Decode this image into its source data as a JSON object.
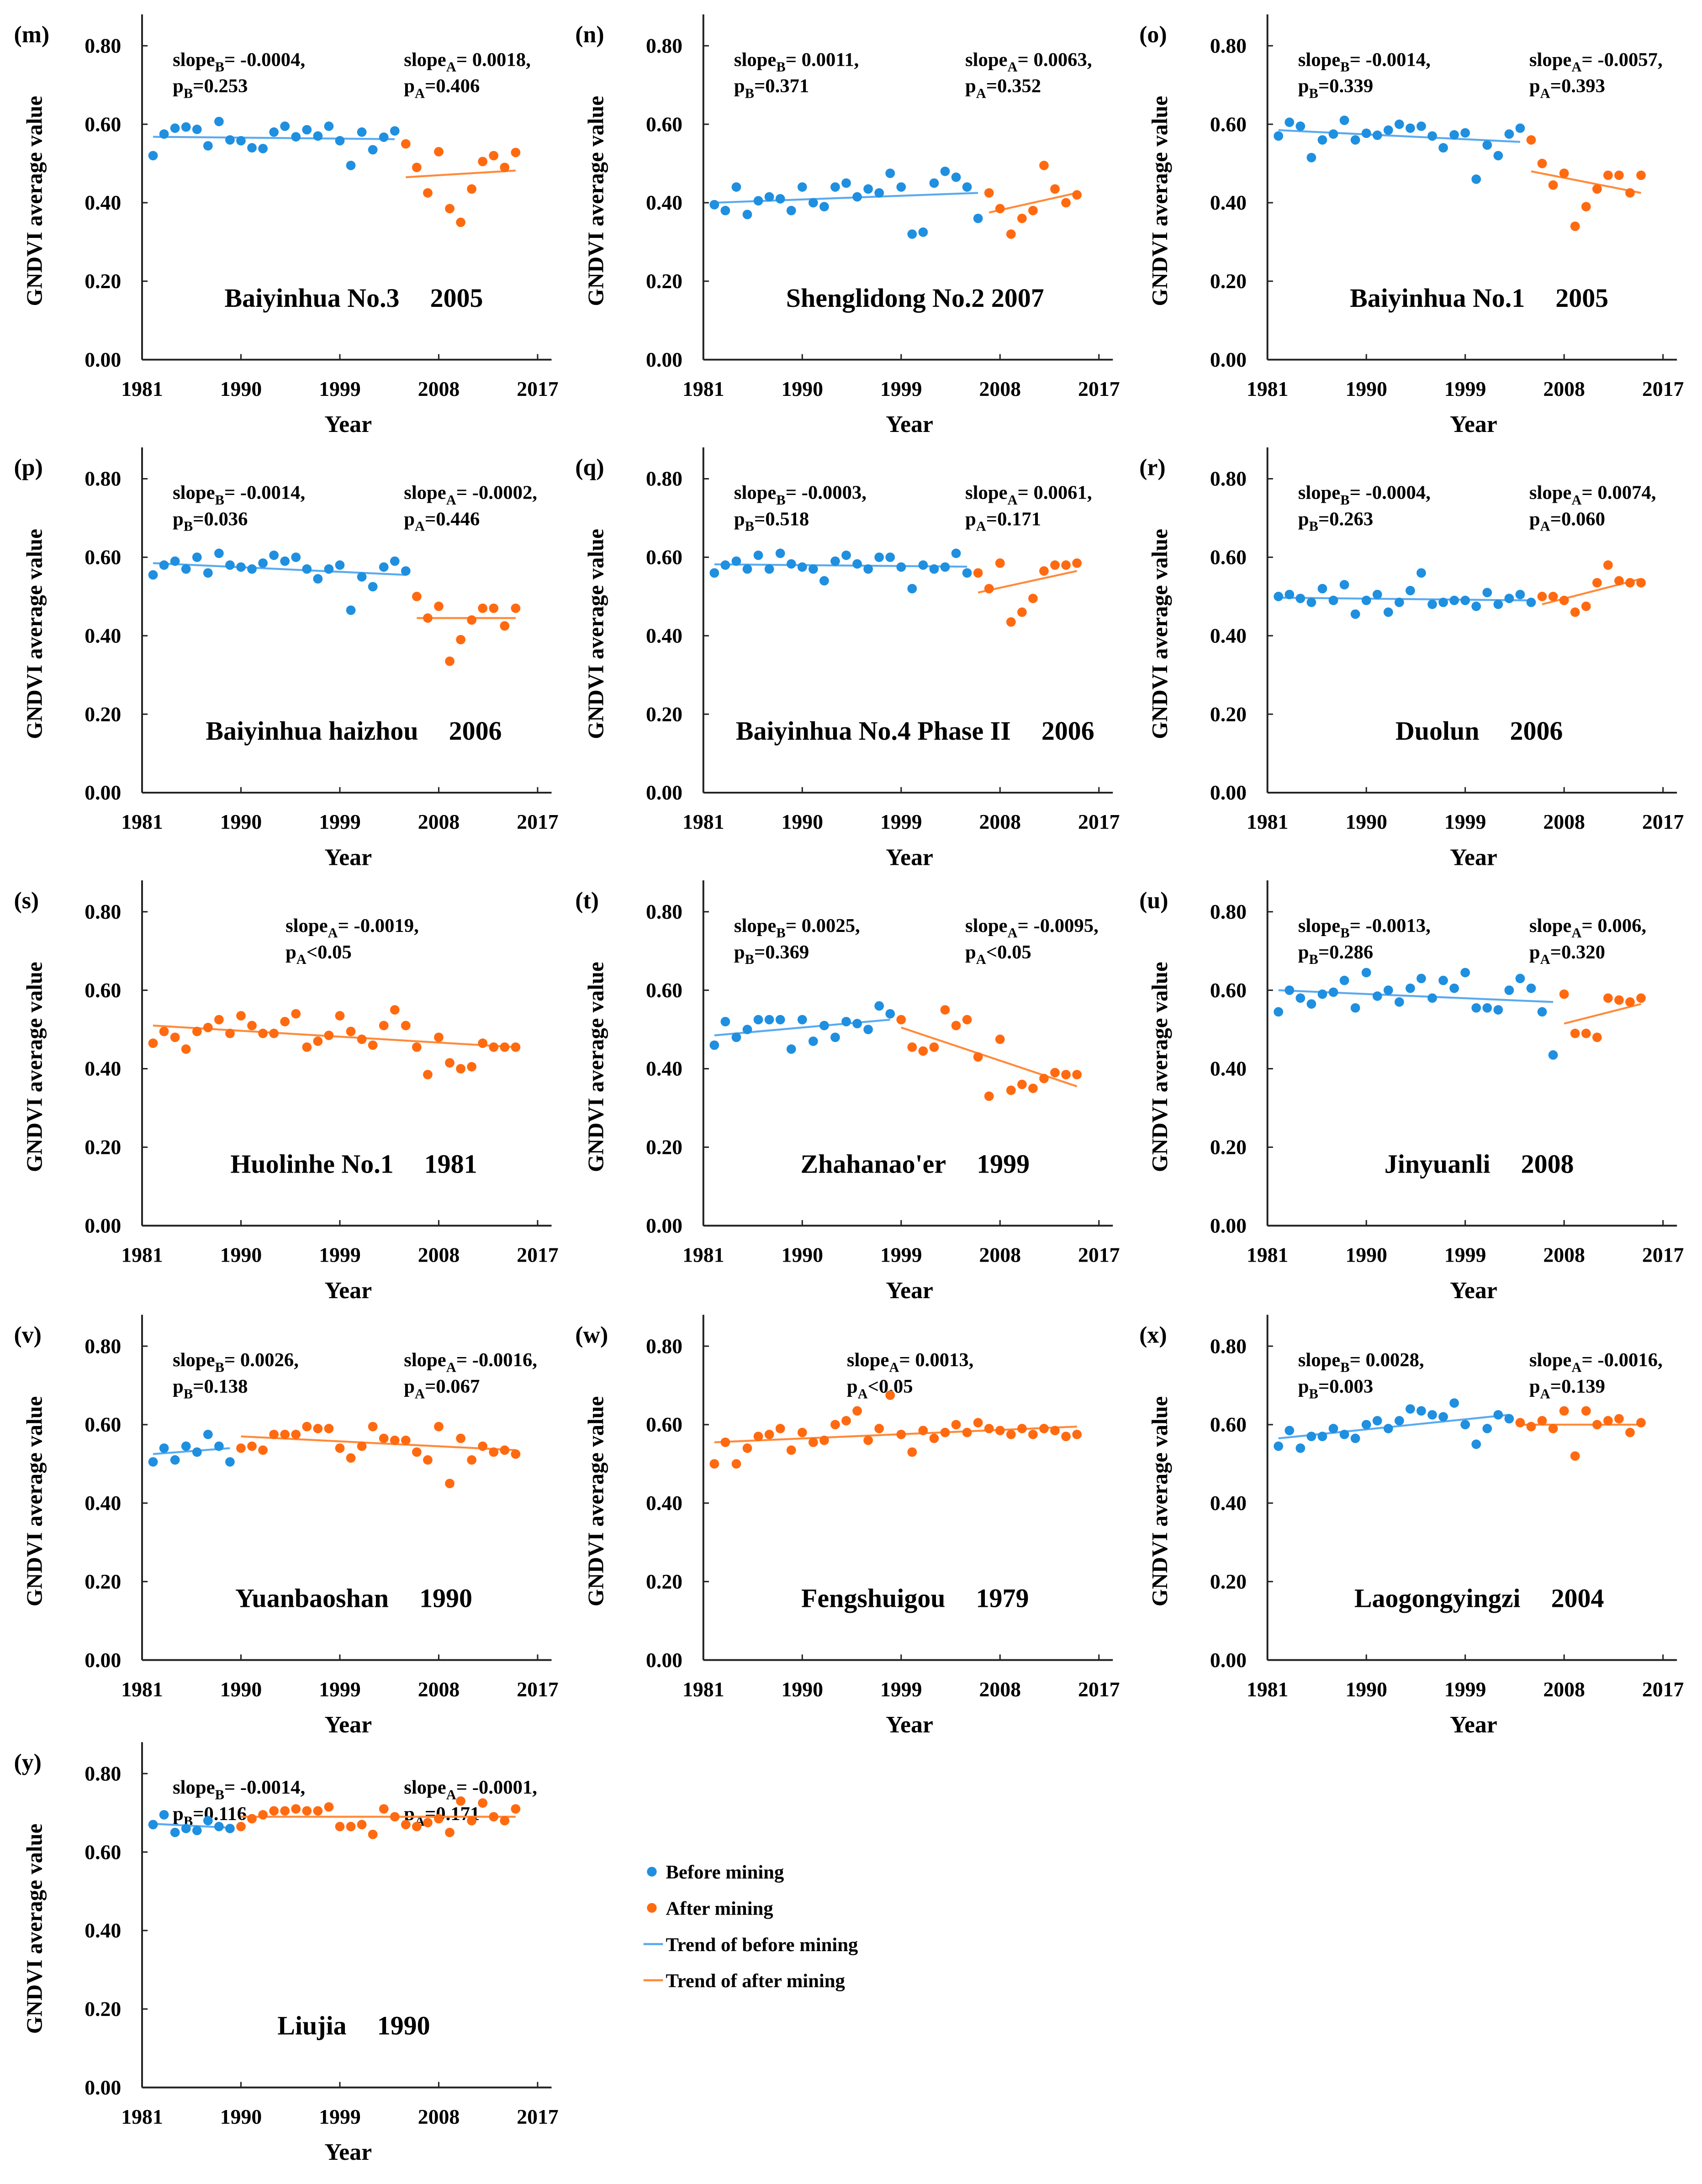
{
  "colors": {
    "before": "#1f8fe0",
    "after": "#ff6a10",
    "trend_before": "#5aaaf0",
    "trend_after": "#ff8a3a",
    "axis": "#222222"
  },
  "legend": {
    "before_points": "Before mining",
    "after_points": "After mining",
    "trend_before": "Trend of before mining",
    "trend_after": "Trend of after mining"
  },
  "chart_data": [
    {
      "type": "scatter",
      "panel": "(m)",
      "site": "Baiyinhua No.3",
      "year": "2005",
      "xlabel": "Year",
      "ylabel": "GNDVI average value",
      "xticks": [
        "1981",
        "1990",
        "1999",
        "2008",
        "2017"
      ],
      "yticks": [
        "0.00",
        "0.20",
        "0.40",
        "0.60",
        "0.80"
      ],
      "xlim": [
        1981,
        2017
      ],
      "ylim": [
        0,
        0.88
      ],
      "annot_b": {
        "slope": "= -0.0004,",
        "p": "=0.253"
      },
      "annot_a": {
        "slope": "= 0.0018,",
        "p": "=0.406"
      },
      "before": {
        "start": 1982,
        "values": [
          0.52,
          0.575,
          0.59,
          0.593,
          0.587,
          0.545,
          0.607,
          0.56,
          0.558,
          0.54,
          0.538,
          0.58,
          0.595,
          0.568,
          0.586,
          0.57,
          0.595,
          0.558,
          0.495,
          0.58,
          0.535,
          0.567,
          0.583
        ]
      },
      "after": {
        "start": 2005,
        "values": [
          0.55,
          0.49,
          0.425,
          0.53,
          0.385,
          0.35,
          0.435,
          0.505,
          0.52,
          0.49,
          0.528
        ]
      },
      "trend_before": [
        0.568,
        0.562
      ],
      "trend_after": [
        0.465,
        0.482
      ]
    },
    {
      "type": "scatter",
      "panel": "(n)",
      "site": "Shenglidong No.2  2007",
      "year": "",
      "xlabel": "Year",
      "ylabel": "GNDVI average value",
      "xticks": [
        "1981",
        "1990",
        "1999",
        "2008",
        "2017"
      ],
      "yticks": [
        "0.00",
        "0.20",
        "0.40",
        "0.60",
        "0.80"
      ],
      "xlim": [
        1981,
        2017
      ],
      "ylim": [
        0,
        0.88
      ],
      "annot_b": {
        "slope": "= 0.0011,",
        "p": "=0.371"
      },
      "annot_a": {
        "slope": "= 0.0063,",
        "p": "=0.352"
      },
      "before": {
        "start": 1982,
        "values": [
          0.395,
          0.38,
          0.44,
          0.37,
          0.405,
          0.415,
          0.41,
          0.38,
          0.44,
          0.4,
          0.39,
          0.44,
          0.45,
          0.415,
          0.435,
          0.425,
          0.475,
          0.44,
          0.32,
          0.325,
          0.45,
          0.48,
          0.465,
          0.44,
          0.36
        ]
      },
      "after": {
        "start": 2007,
        "values": [
          0.425,
          0.385,
          0.32,
          0.36,
          0.38,
          0.495,
          0.435,
          0.4,
          0.42
        ]
      },
      "trend_before": [
        0.4,
        0.425
      ],
      "trend_after": [
        0.375,
        0.425
      ]
    },
    {
      "type": "scatter",
      "panel": "(o)",
      "site": "Baiyinhua No.1",
      "year": "2005",
      "xlabel": "Year",
      "ylabel": "GNDVI average value",
      "xticks": [
        "1981",
        "1990",
        "1999",
        "2008",
        "2017"
      ],
      "yticks": [
        "0.00",
        "0.20",
        "0.40",
        "0.60",
        "0.80"
      ],
      "xlim": [
        1981,
        2017
      ],
      "ylim": [
        0,
        0.88
      ],
      "annot_b": {
        "slope": "= -0.0014,",
        "p": "=0.339"
      },
      "annot_a": {
        "slope": "= -0.0057,",
        "p": "=0.393"
      },
      "before": {
        "start": 1982,
        "values": [
          0.57,
          0.605,
          0.595,
          0.515,
          0.56,
          0.575,
          0.61,
          0.56,
          0.577,
          0.572,
          0.585,
          0.6,
          0.59,
          0.595,
          0.57,
          0.54,
          0.573,
          0.578,
          0.46,
          0.547,
          0.52,
          0.575,
          0.59
        ]
      },
      "after": {
        "start": 2005,
        "values": [
          0.56,
          0.5,
          0.445,
          0.475,
          0.34,
          0.39,
          0.435,
          0.47,
          0.47,
          0.425,
          0.47
        ]
      },
      "trend_before": [
        0.585,
        0.555
      ],
      "trend_after": [
        0.48,
        0.425
      ]
    },
    {
      "type": "scatter",
      "panel": "(p)",
      "site": "Baiyinhua  haizhou",
      "year": "2006",
      "xlabel": "Year",
      "ylabel": "GNDVI average value",
      "xticks": [
        "1981",
        "1990",
        "1999",
        "2008",
        "2017"
      ],
      "yticks": [
        "0.00",
        "0.20",
        "0.40",
        "0.60",
        "0.80"
      ],
      "xlim": [
        1981,
        2017
      ],
      "ylim": [
        0,
        0.88
      ],
      "annot_b": {
        "slope": "= -0.0014,",
        "p": "=0.036"
      },
      "annot_a": {
        "slope": "= -0.0002,",
        "p": "=0.446"
      },
      "before": {
        "start": 1982,
        "values": [
          0.555,
          0.58,
          0.59,
          0.57,
          0.6,
          0.56,
          0.61,
          0.58,
          0.575,
          0.57,
          0.585,
          0.605,
          0.59,
          0.6,
          0.57,
          0.545,
          0.57,
          0.58,
          0.465,
          0.55,
          0.525,
          0.575,
          0.59,
          0.565
        ]
      },
      "after": {
        "start": 2006,
        "values": [
          0.5,
          0.445,
          0.475,
          0.335,
          0.39,
          0.44,
          0.47,
          0.47,
          0.425,
          0.47
        ]
      },
      "trend_before": [
        0.585,
        0.555
      ],
      "trend_after": [
        0.445,
        0.445
      ]
    },
    {
      "type": "scatter",
      "panel": "(q)",
      "site": "Baiyinhua  No.4 Phase II",
      "year": "2006",
      "xlabel": "Year",
      "ylabel": "GNDVI average value",
      "xticks": [
        "1981",
        "1990",
        "1999",
        "2008",
        "2017"
      ],
      "yticks": [
        "0.00",
        "0.20",
        "0.40",
        "0.60",
        "0.80"
      ],
      "xlim": [
        1981,
        2017
      ],
      "ylim": [
        0,
        0.88
      ],
      "annot_b": {
        "slope": "= -0.0003,",
        "p": "=0.518"
      },
      "annot_a": {
        "slope": "= 0.0061,",
        "p": "=0.171"
      },
      "before": {
        "start": 1982,
        "values": [
          0.56,
          0.58,
          0.59,
          0.57,
          0.605,
          0.57,
          0.61,
          0.583,
          0.575,
          0.57,
          0.54,
          0.59,
          0.605,
          0.583,
          0.57,
          0.6,
          0.6,
          0.575,
          0.52,
          0.58,
          0.57,
          0.575,
          0.61,
          0.56
        ]
      },
      "after": {
        "start": 2006,
        "values": [
          0.56,
          0.52,
          0.585,
          0.435,
          0.46,
          0.495,
          0.565,
          0.58,
          0.58,
          0.585
        ]
      },
      "trend_before": [
        0.582,
        0.576
      ],
      "trend_after": [
        0.51,
        0.565
      ]
    },
    {
      "type": "scatter",
      "panel": "(r)",
      "site": "Duolun",
      "year": "2006",
      "xlabel": "Year",
      "ylabel": "GNDVI average value",
      "xticks": [
        "1981",
        "1990",
        "1999",
        "2008",
        "2017"
      ],
      "yticks": [
        "0.00",
        "0.20",
        "0.40",
        "0.60",
        "0.80"
      ],
      "xlim": [
        1981,
        2017
      ],
      "ylim": [
        0,
        0.88
      ],
      "annot_b": {
        "slope": "= -0.0004,",
        "p": "=0.263"
      },
      "annot_a": {
        "slope": "= 0.0074,",
        "p": "=0.060"
      },
      "before": {
        "start": 1982,
        "values": [
          0.5,
          0.505,
          0.495,
          0.485,
          0.52,
          0.49,
          0.53,
          0.455,
          0.49,
          0.505,
          0.46,
          0.485,
          0.515,
          0.56,
          0.48,
          0.485,
          0.49,
          0.49,
          0.475,
          0.51,
          0.48,
          0.495,
          0.505,
          0.485
        ]
      },
      "after": {
        "start": 2006,
        "values": [
          0.5,
          0.5,
          0.49,
          0.46,
          0.475,
          0.535,
          0.58,
          0.54,
          0.535,
          0.535
        ]
      },
      "trend_before": [
        0.497,
        0.49
      ],
      "trend_after": [
        0.48,
        0.545
      ]
    },
    {
      "type": "scatter",
      "panel": "(s)",
      "site": "Huolinhe No.1",
      "year": "1981",
      "xlabel": "Year",
      "ylabel": "GNDVI average value",
      "xticks": [
        "1981",
        "1990",
        "1999",
        "2008",
        "2017"
      ],
      "yticks": [
        "0.00",
        "0.20",
        "0.40",
        "0.60",
        "0.80"
      ],
      "xlim": [
        1981,
        2017
      ],
      "ylim": [
        0,
        0.88
      ],
      "annot_a": {
        "slope": "= -0.0019,",
        "p": "<0.05"
      },
      "after": {
        "start": 1982,
        "values": [
          0.465,
          0.495,
          0.48,
          0.45,
          0.495,
          0.505,
          0.525,
          0.49,
          0.535,
          0.51,
          0.49,
          0.49,
          0.52,
          0.54,
          0.455,
          0.47,
          0.485,
          0.535,
          0.495,
          0.475,
          0.46,
          0.51,
          0.55,
          0.51,
          0.455,
          0.385,
          0.48,
          0.415,
          0.4,
          0.405,
          0.465,
          0.455,
          0.455,
          0.455
        ]
      },
      "trend_after": [
        0.51,
        0.455
      ]
    },
    {
      "type": "scatter",
      "panel": "(t)",
      "site": "Zhahanao'er",
      "year": "1999",
      "xlabel": "Year",
      "ylabel": "GNDVI average value",
      "xticks": [
        "1981",
        "1990",
        "1999",
        "2008",
        "2017"
      ],
      "yticks": [
        "0.00",
        "0.20",
        "0.40",
        "0.60",
        "0.80"
      ],
      "xlim": [
        1981,
        2017
      ],
      "ylim": [
        0,
        0.88
      ],
      "annot_b": {
        "slope": "= 0.0025,",
        "p": "=0.369"
      },
      "annot_a": {
        "slope": "= -0.0095,",
        "p": "<0.05"
      },
      "before": {
        "start": 1982,
        "values": [
          0.46,
          0.52,
          0.48,
          0.5,
          0.525,
          0.525,
          0.525,
          0.45,
          0.525,
          0.47,
          0.51,
          0.48,
          0.52,
          0.515,
          0.5,
          0.56,
          0.54
        ]
      },
      "after": {
        "start": 1999,
        "values": [
          0.525,
          0.455,
          0.445,
          0.455,
          0.55,
          0.51,
          0.525,
          0.43,
          0.33,
          0.475,
          0.345,
          0.36,
          0.35,
          0.375,
          0.39,
          0.385,
          0.385
        ]
      },
      "trend_before": [
        0.485,
        0.525
      ],
      "trend_after": [
        0.505,
        0.355
      ]
    },
    {
      "type": "scatter",
      "panel": "(u)",
      "site": "Jinyuanli",
      "year": "2008",
      "xlabel": "Year",
      "ylabel": "GNDVI average value",
      "xticks": [
        "1981",
        "1990",
        "1999",
        "2008",
        "2017"
      ],
      "yticks": [
        "0.00",
        "0.20",
        "0.40",
        "0.60",
        "0.80"
      ],
      "xlim": [
        1981,
        2017
      ],
      "ylim": [
        0,
        0.88
      ],
      "annot_b": {
        "slope": "= -0.0013,",
        "p": "=0.286"
      },
      "annot_a": {
        "slope": "= 0.006,",
        "p": "=0.320"
      },
      "before": {
        "start": 1982,
        "values": [
          0.545,
          0.6,
          0.58,
          0.565,
          0.59,
          0.595,
          0.625,
          0.555,
          0.645,
          0.585,
          0.6,
          0.57,
          0.605,
          0.63,
          0.58,
          0.625,
          0.605,
          0.645,
          0.555,
          0.555,
          0.55,
          0.6,
          0.63,
          0.605,
          0.545,
          0.435
        ]
      },
      "after": {
        "start": 2008,
        "values": [
          0.59,
          0.49,
          0.49,
          0.48,
          0.58,
          0.575,
          0.57,
          0.58
        ]
      },
      "trend_before": [
        0.6,
        0.57
      ],
      "trend_after": [
        0.515,
        0.565
      ]
    },
    {
      "type": "scatter",
      "panel": "(v)",
      "site": "Yuanbaoshan",
      "year": "1990",
      "xlabel": "Year",
      "ylabel": "GNDVI average value",
      "xticks": [
        "1981",
        "1990",
        "1999",
        "2008",
        "2017"
      ],
      "yticks": [
        "0.00",
        "0.20",
        "0.40",
        "0.60",
        "0.80"
      ],
      "xlim": [
        1981,
        2017
      ],
      "ylim": [
        0,
        0.88
      ],
      "annot_b": {
        "slope": "= 0.0026,",
        "p": "=0.138"
      },
      "annot_a": {
        "slope": "= -0.0016,",
        "p": "=0.067"
      },
      "before": {
        "start": 1982,
        "values": [
          0.505,
          0.54,
          0.51,
          0.545,
          0.53,
          0.575,
          0.545,
          0.505
        ]
      },
      "after": {
        "start": 1990,
        "values": [
          0.54,
          0.545,
          0.535,
          0.575,
          0.575,
          0.575,
          0.595,
          0.59,
          0.59,
          0.54,
          0.515,
          0.545,
          0.595,
          0.565,
          0.56,
          0.56,
          0.53,
          0.51,
          0.595,
          0.45,
          0.565,
          0.51,
          0.545,
          0.53,
          0.535,
          0.525
        ]
      },
      "trend_before": [
        0.525,
        0.54
      ],
      "trend_after": [
        0.57,
        0.535
      ]
    },
    {
      "type": "scatter",
      "panel": "(w)",
      "site": "Fengshuigou",
      "year": "1979",
      "xlabel": "Year",
      "ylabel": "GNDVI average value",
      "xticks": [
        "1981",
        "1990",
        "1999",
        "2008",
        "2017"
      ],
      "yticks": [
        "0.00",
        "0.20",
        "0.40",
        "0.60",
        "0.80"
      ],
      "xlim": [
        1981,
        2017
      ],
      "ylim": [
        0,
        0.88
      ],
      "annot_a": {
        "slope": "= 0.0013,",
        "p": "<0.05"
      },
      "after": {
        "start": 1982,
        "values": [
          0.5,
          0.555,
          0.5,
          0.54,
          0.57,
          0.575,
          0.59,
          0.535,
          0.58,
          0.555,
          0.56,
          0.6,
          0.61,
          0.635,
          0.56,
          0.59,
          0.675,
          0.575,
          0.53,
          0.585,
          0.565,
          0.58,
          0.6,
          0.58,
          0.605,
          0.59,
          0.585,
          0.575,
          0.59,
          0.575,
          0.59,
          0.585,
          0.57,
          0.575
        ]
      },
      "trend_after": [
        0.555,
        0.595
      ]
    },
    {
      "type": "scatter",
      "panel": "(x)",
      "site": "Laogongyingzi",
      "year": "2004",
      "xlabel": "Year",
      "ylabel": "GNDVI average value",
      "xticks": [
        "1981",
        "1990",
        "1999",
        "2008",
        "2017"
      ],
      "yticks": [
        "0.00",
        "0.20",
        "0.40",
        "0.60",
        "0.80"
      ],
      "xlim": [
        1981,
        2017
      ],
      "ylim": [
        0,
        0.88
      ],
      "annot_b": {
        "slope": "= 0.0028,",
        "p": "=0.003"
      },
      "annot_a": {
        "slope": "= -0.0016,",
        "p": "=0.139"
      },
      "before": {
        "start": 1982,
        "values": [
          0.545,
          0.585,
          0.54,
          0.57,
          0.57,
          0.59,
          0.575,
          0.565,
          0.6,
          0.61,
          0.59,
          0.61,
          0.64,
          0.635,
          0.625,
          0.62,
          0.655,
          0.6,
          0.55,
          0.59,
          0.625,
          0.615
        ]
      },
      "after": {
        "start": 2004,
        "values": [
          0.605,
          0.595,
          0.61,
          0.59,
          0.635,
          0.52,
          0.635,
          0.6,
          0.61,
          0.615,
          0.58,
          0.605
        ]
      },
      "trend_before": [
        0.565,
        0.625
      ],
      "trend_after": [
        0.6,
        0.6
      ]
    },
    {
      "type": "scatter",
      "panel": "(y)",
      "site": "Liujia",
      "year": "1990",
      "xlabel": "Year",
      "ylabel": "GNDVI average value",
      "xticks": [
        "1981",
        "1990",
        "1999",
        "2008",
        "2017"
      ],
      "yticks": [
        "0.00",
        "0.20",
        "0.40",
        "0.60",
        "0.80"
      ],
      "xlim": [
        1981,
        2017
      ],
      "ylim": [
        0,
        0.88
      ],
      "annot_b": {
        "slope": "= -0.0014,",
        "p": "=0.116"
      },
      "annot_a": {
        "slope": "= -0.0001,",
        "p": "=0.171"
      },
      "before": {
        "start": 1982,
        "values": [
          0.67,
          0.695,
          0.65,
          0.66,
          0.655,
          0.68,
          0.665,
          0.66
        ]
      },
      "after": {
        "start": 1990,
        "values": [
          0.665,
          0.685,
          0.695,
          0.705,
          0.705,
          0.71,
          0.705,
          0.705,
          0.715,
          0.665,
          0.665,
          0.67,
          0.645,
          0.71,
          0.69,
          0.67,
          0.665,
          0.675,
          0.685,
          0.65,
          0.73,
          0.68,
          0.725,
          0.69,
          0.68,
          0.71
        ]
      },
      "trend_before": [
        0.672,
        0.662
      ],
      "trend_after": [
        0.69,
        0.69
      ]
    }
  ]
}
